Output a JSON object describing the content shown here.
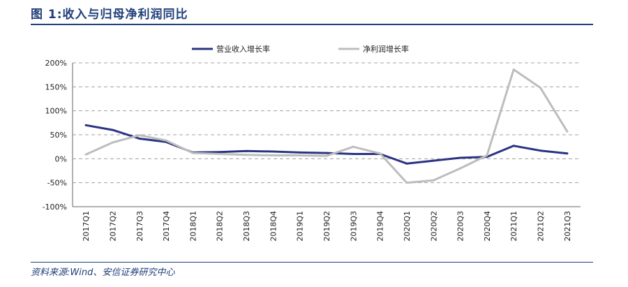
{
  "header": {
    "title": "图 1:收入与归母净利润同比"
  },
  "footer": {
    "source": "资料来源:Wind、安信证券研究中心"
  },
  "colors": {
    "revenue": "#2b3383",
    "profit": "#bdbdbd",
    "accent": "#1f3f7a",
    "grid": "#a0a0a0"
  },
  "chart_data": {
    "type": "line",
    "categories": [
      "2017Q1",
      "2017Q2",
      "2017Q3",
      "2017Q4",
      "2018Q1",
      "2018Q2",
      "2018Q3",
      "2018Q4",
      "2019Q1",
      "2019Q2",
      "2019Q3",
      "2019Q4",
      "2020Q1",
      "2020Q2",
      "2020Q3",
      "2020Q4",
      "2021Q1",
      "2021Q2",
      "2021Q3"
    ],
    "series": [
      {
        "name": "营业收入增长率",
        "color": "#2b3383",
        "values": [
          70,
          60,
          42,
          35,
          13,
          14,
          16,
          15,
          13,
          12,
          10,
          10,
          -10,
          -4,
          2,
          4,
          27,
          17,
          11
        ]
      },
      {
        "name": "净利润增长率",
        "color": "#bdbdbd",
        "values": [
          9,
          34,
          49,
          38,
          12,
          10,
          8,
          7,
          7,
          6,
          25,
          11,
          -50,
          -45,
          -20,
          7,
          186,
          148,
          57
        ]
      }
    ],
    "yticks": [
      "200%",
      "150%",
      "100%",
      "50%",
      "0%",
      "-50%",
      "-100%"
    ],
    "ylim": [
      -100,
      200
    ],
    "grid": "horizontal dashed",
    "legend": "top"
  }
}
